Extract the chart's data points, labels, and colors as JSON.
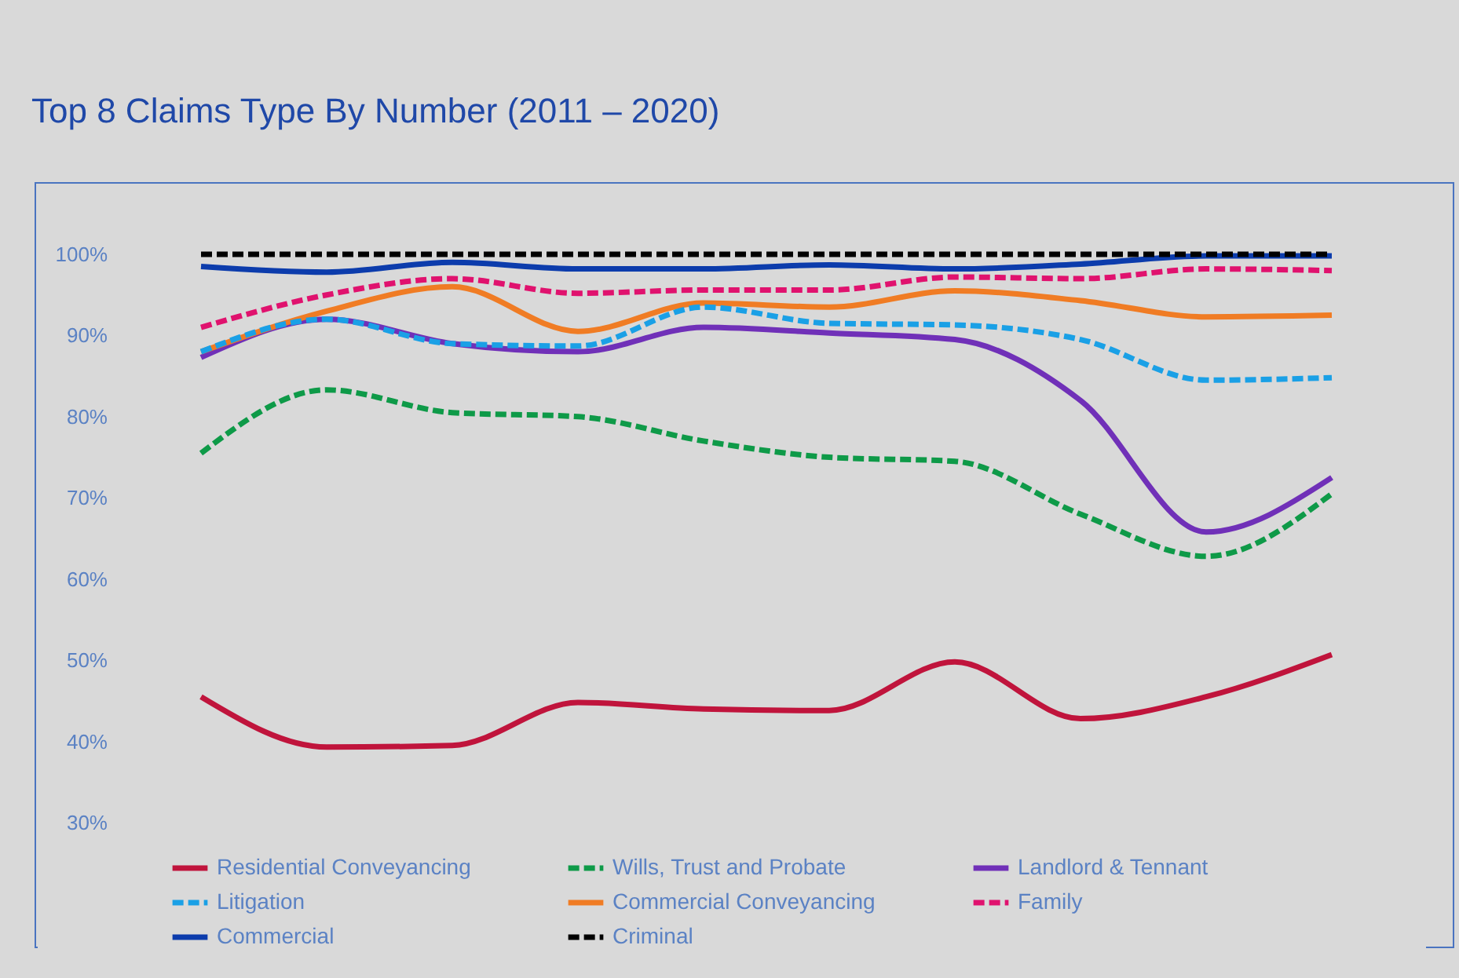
{
  "chart_data": {
    "type": "line",
    "title": "Top 8 Claims Type By Number (2011 – 2020)",
    "categories": [
      null,
      null,
      null,
      null,
      null,
      null,
      null,
      null,
      null,
      null
    ],
    "ylim": [
      30,
      100
    ],
    "yticks": [
      {
        "value": 30,
        "label": "30%"
      },
      {
        "value": 40,
        "label": "40%"
      },
      {
        "value": 50,
        "label": "50%"
      },
      {
        "value": 60,
        "label": "60%"
      },
      {
        "value": 70,
        "label": "70%"
      },
      {
        "value": 80,
        "label": "80%"
      },
      {
        "value": 90,
        "label": "90%"
      },
      {
        "value": 100,
        "label": "100%"
      }
    ],
    "legend": "bottom",
    "marker": "none",
    "series": [
      {
        "name": "Residential Conveyancing",
        "color": "#c0143c",
        "line_style": "solid",
        "values": [
          45.5,
          39.3,
          39.5,
          44.8,
          44,
          43.8,
          49.8,
          42.8,
          45.5,
          50.7
        ]
      },
      {
        "name": "Wills, Trust and Probate",
        "color": "#0e9a48",
        "line_style": "dashed",
        "values": [
          75.5,
          83.3,
          80.5,
          80,
          77,
          75,
          74.5,
          68,
          62.8,
          70.5
        ]
      },
      {
        "name": "Landlord & Tennant",
        "color": "#7030b8",
        "line_style": "solid",
        "values": [
          87.3,
          92,
          89,
          88,
          91,
          90.3,
          89.5,
          82,
          65.8,
          72.5
        ]
      },
      {
        "name": "Litigation",
        "color": "#1aa0e6",
        "line_style": "dashed",
        "values": [
          88,
          92,
          89,
          88.7,
          93.5,
          91.5,
          91.3,
          89.5,
          84.5,
          84.8
        ]
      },
      {
        "name": "Commercial Conveyancing",
        "color": "#f07c24",
        "line_style": "solid",
        "values": [
          88,
          93,
          96,
          90.5,
          94,
          93.5,
          95.5,
          94.3,
          92.3,
          92.5
        ]
      },
      {
        "name": "Family",
        "color": "#e0126e",
        "line_style": "dashed",
        "values": [
          91,
          95,
          97,
          95.2,
          95.6,
          95.6,
          97.2,
          97,
          98.2,
          98
        ]
      },
      {
        "name": "Commercial",
        "color": "#0c3cac",
        "line_style": "solid",
        "values": [
          98.5,
          97.8,
          99,
          98.2,
          98.2,
          98.7,
          98.2,
          98.8,
          99.8,
          99.8
        ]
      },
      {
        "name": "Criminal",
        "color": "#000000",
        "line_style": "dashed",
        "values": [
          100,
          100,
          100,
          100,
          100,
          100,
          100,
          100,
          100,
          100
        ]
      }
    ]
  }
}
